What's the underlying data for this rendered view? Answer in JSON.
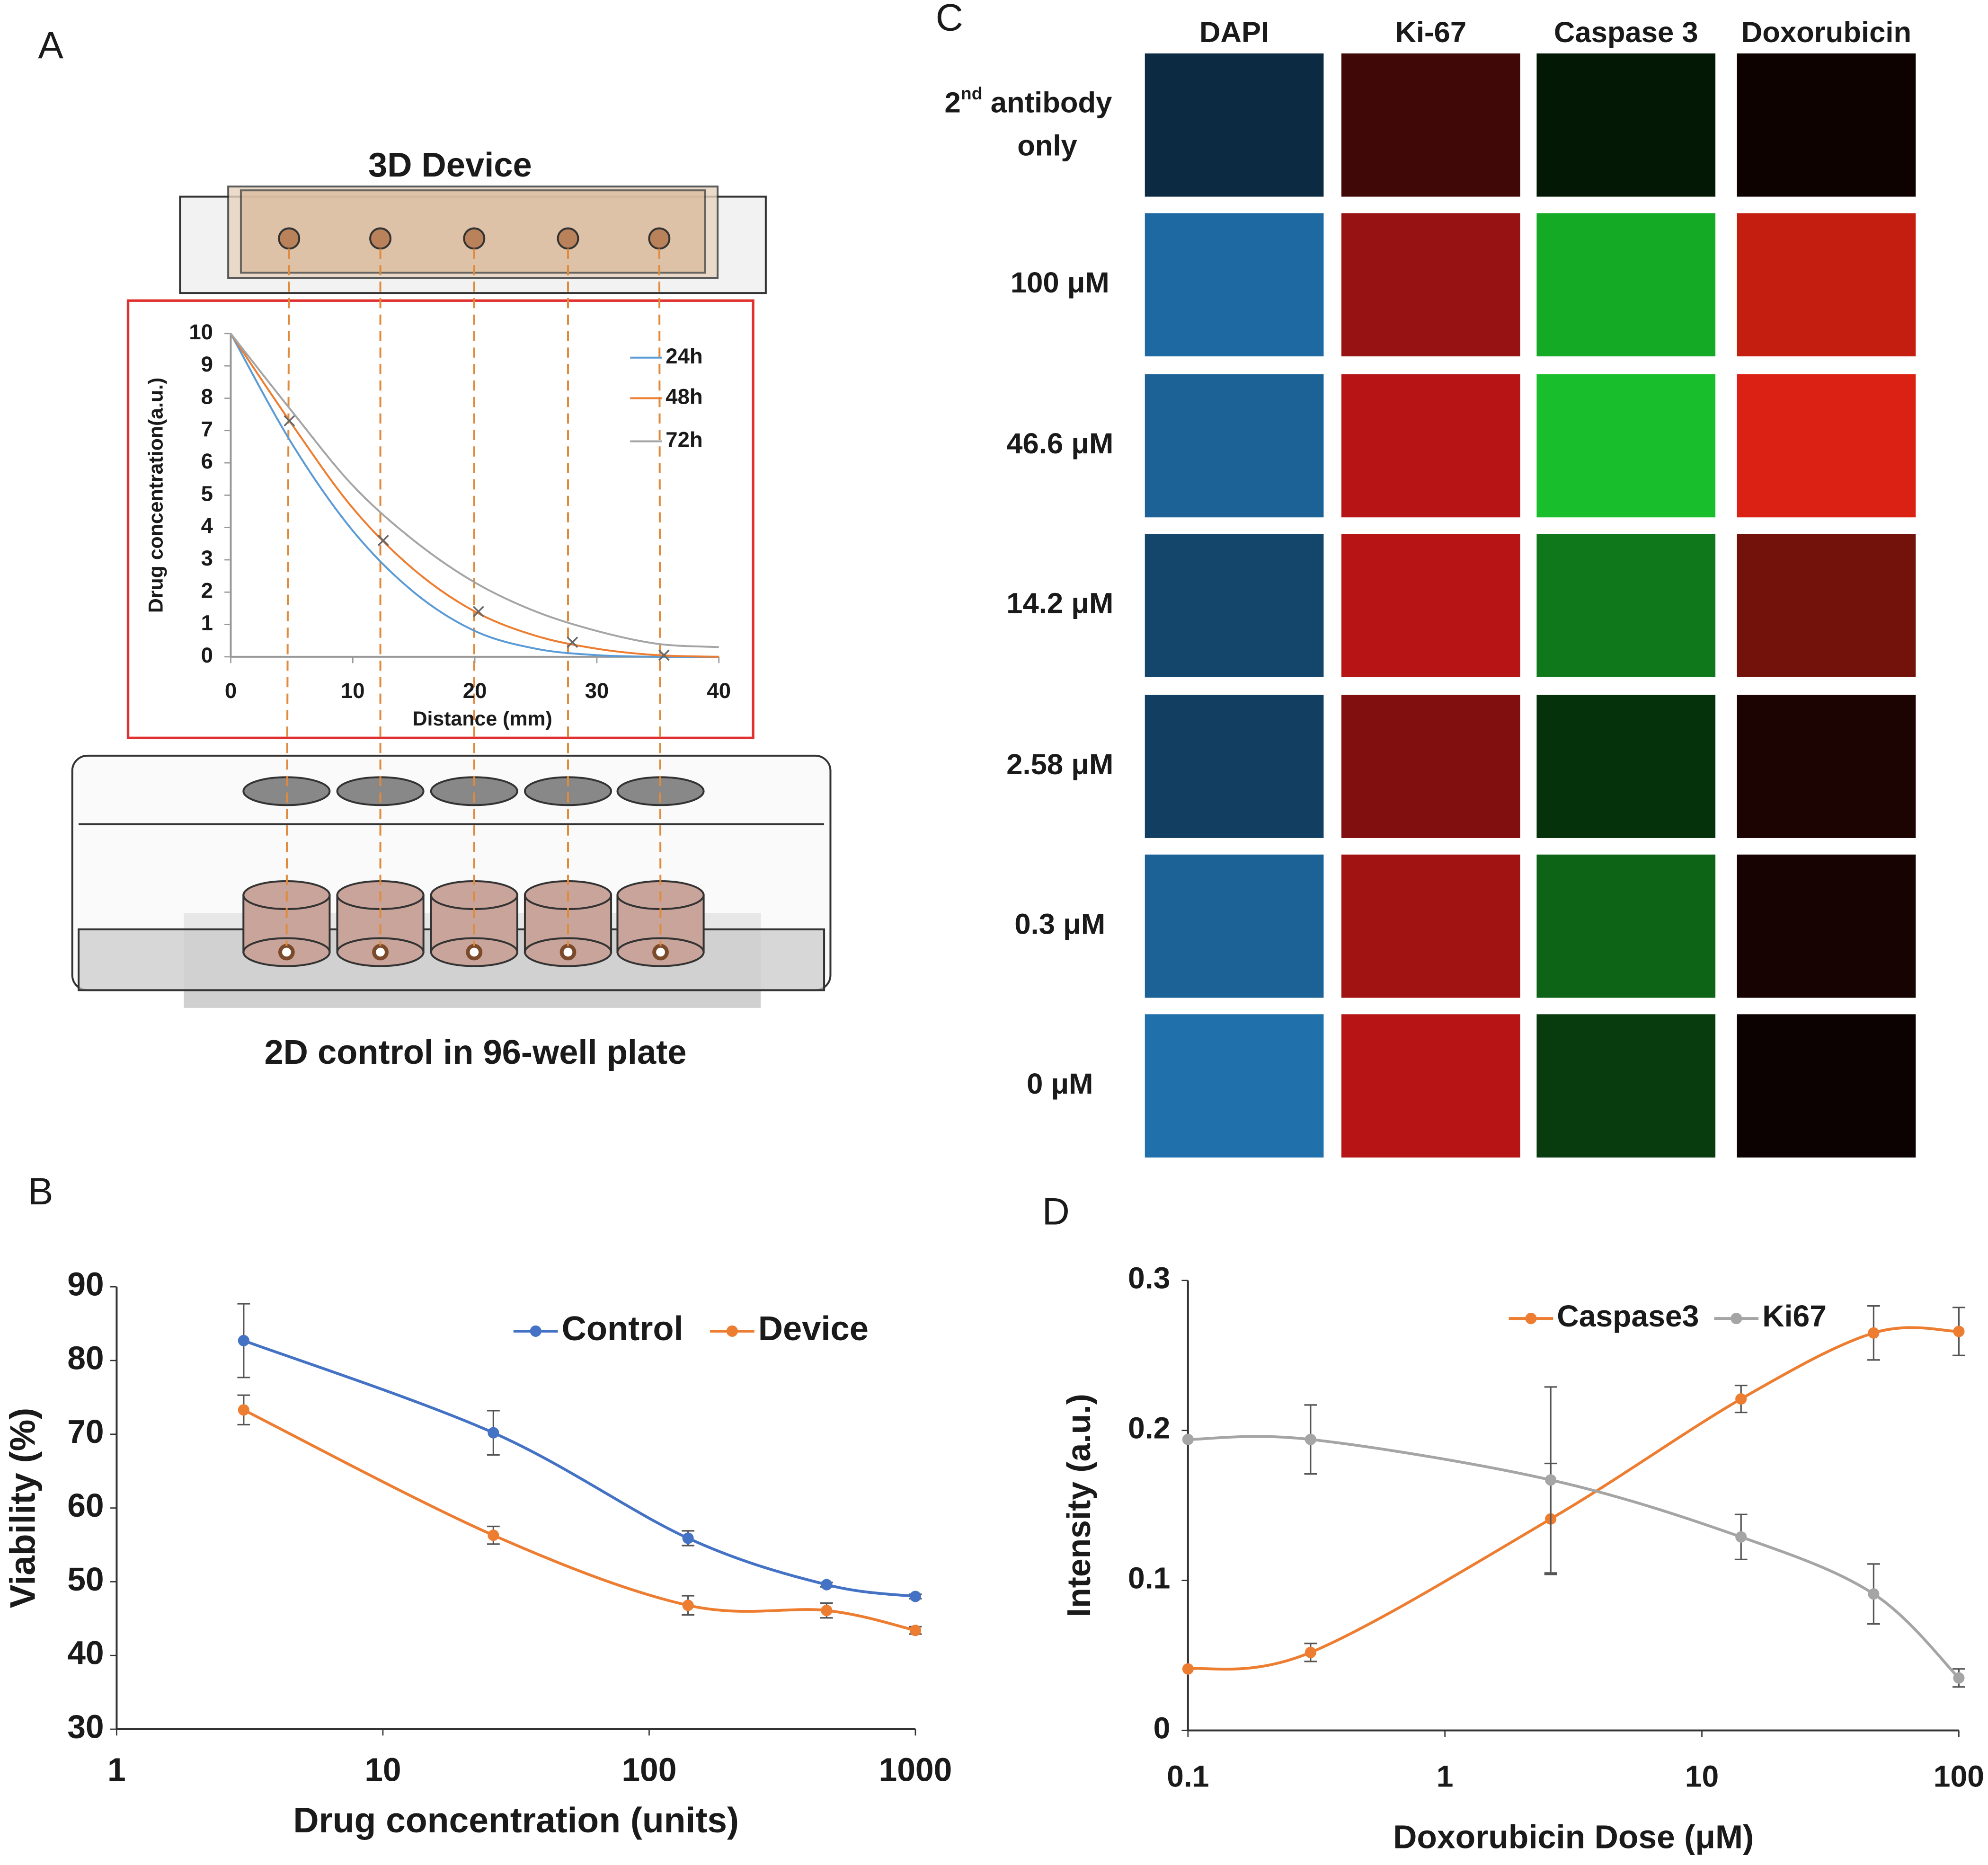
{
  "panel_labels": [
    "A",
    "B",
    "C",
    "D"
  ],
  "diagram": {
    "device_label": "3D Device",
    "plate_label": "2D control in 96-well plate"
  },
  "microscopy": {
    "columns": [
      "DAPI",
      "Ki-67",
      "Caspase 3",
      "Doxorubicin"
    ],
    "rows": [
      [
        "2",
        "nd",
        " antibody",
        "only"
      ],
      "100 μM",
      "46.6 μM",
      "14.2 μM",
      "2.58 μM",
      "0.3 μM",
      "0 μM"
    ]
  },
  "chart_data": [
    {
      "type": "line",
      "xlabel": "Distance (mm)",
      "ylabel": "Drug concentration(a.u.)",
      "x": [
        0,
        5,
        10,
        15,
        20,
        25,
        30,
        35,
        40
      ],
      "series": [
        {
          "name": "24h",
          "color": "#5b9bd5",
          "values": [
            10,
            6.6,
            3.9,
            2.0,
            0.8,
            0.25,
            0.05,
            0,
            0
          ]
        },
        {
          "name": "48h",
          "color": "#ed7d31",
          "values": [
            10,
            7.2,
            4.6,
            2.7,
            1.4,
            0.65,
            0.25,
            0.05,
            0
          ]
        },
        {
          "name": "72h",
          "color": "#a5a5a5",
          "values": [
            10,
            7.6,
            5.3,
            3.6,
            2.3,
            1.4,
            0.8,
            0.4,
            0.3
          ]
        }
      ],
      "crosses": {
        "x": [
          4.8,
          12.5,
          20.3,
          28,
          35.5
        ],
        "values": [
          7.3,
          3.6,
          1.4,
          0.45,
          0.05
        ]
      },
      "xlim": [
        0,
        40
      ],
      "xticks": [
        0,
        10,
        20,
        30,
        40
      ],
      "ylim": [
        0,
        10
      ],
      "yticks": [
        0,
        1,
        2,
        3,
        4,
        5,
        6,
        7,
        8,
        9,
        10
      ],
      "legend": "upper right"
    },
    {
      "type": "line",
      "xlabel": "Drug concentration (units)",
      "ylabel": "Viability (%)",
      "xscale": "log",
      "x": [
        3,
        26,
        140,
        464,
        1000
      ],
      "series": [
        {
          "name": "Control",
          "color": "#4472c4",
          "values": [
            82.7,
            70.2,
            55.9,
            49.6,
            48.0
          ],
          "errors": [
            5,
            3,
            1,
            0.3,
            0.3
          ]
        },
        {
          "name": "Device",
          "color": "#ed7d31",
          "values": [
            73.3,
            56.3,
            46.8,
            46.1,
            43.4
          ],
          "errors": [
            2,
            1.2,
            1.3,
            1,
            0.5
          ]
        }
      ],
      "markers": true,
      "xlim": [
        1,
        1000
      ],
      "xticks": [
        1,
        10,
        100,
        1000
      ],
      "ylim": [
        30,
        90
      ],
      "yticks": [
        30,
        40,
        50,
        60,
        70,
        80,
        90
      ],
      "legend": "upper right"
    },
    {
      "type": "line",
      "xlabel": "Doxorubicin Dose (μM)",
      "ylabel": "Intensity (a.u.)",
      "xscale": "log",
      "x": [
        0.1,
        0.3,
        2.58,
        14.2,
        46.6,
        100
      ],
      "series": [
        {
          "name": "Caspase3",
          "color": "#ed7d31",
          "values": [
            0.041,
            0.052,
            0.141,
            0.221,
            0.265,
            0.266
          ],
          "errors": [
            null,
            0.006,
            0.037,
            0.009,
            0.018,
            0.016
          ]
        },
        {
          "name": "Ki67",
          "color": "#a5a5a5",
          "values": [
            0.194,
            0.194,
            0.167,
            0.129,
            0.091,
            0.035
          ],
          "errors": [
            null,
            0.023,
            0.062,
            0.015,
            0.02,
            0.006
          ]
        }
      ],
      "markers": true,
      "xlim": [
        0.1,
        100
      ],
      "xticks": [
        0.1,
        1,
        10,
        100
      ],
      "ylim": [
        0,
        0.3
      ],
      "yticks": [
        0,
        0.1,
        0.2,
        0.3
      ],
      "legend": "upper right"
    }
  ]
}
